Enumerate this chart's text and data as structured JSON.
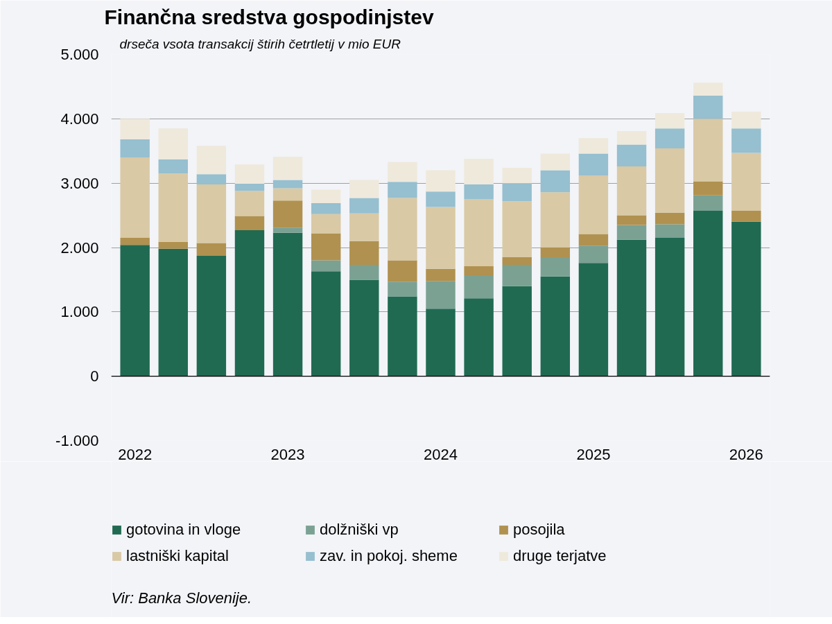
{
  "chart_data": {
    "type": "bar",
    "stacked": true,
    "title": "Finančna sredstva gospodinjstev",
    "subtitle": "drseča vsota transakcij štirih četrtletij v mio EUR",
    "annotations": [
      "Vir: Banka Slovenije."
    ],
    "categories": [
      "2022",
      null,
      null,
      null,
      "2023",
      null,
      null,
      null,
      "2024",
      null,
      null,
      null,
      "2025",
      null,
      null,
      null,
      "2026"
    ],
    "series": [
      {
        "name": "gotovina in vloge",
        "color": "#206a52",
        "values": [
          2040,
          1980,
          1870,
          2270,
          2230,
          1630,
          1500,
          1240,
          1050,
          1210,
          1400,
          1550,
          1760,
          2120,
          2150,
          2570,
          2400
        ]
      },
      {
        "name": "dolžniški vp",
        "color": "#7ba193",
        "values": [
          0,
          0,
          0,
          0,
          80,
          170,
          230,
          230,
          430,
          360,
          330,
          300,
          270,
          230,
          210,
          240,
          0
        ]
      },
      {
        "name": "posojila",
        "color": "#b0914f",
        "values": [
          110,
          110,
          200,
          220,
          420,
          420,
          370,
          330,
          190,
          140,
          120,
          150,
          180,
          150,
          180,
          220,
          170
        ]
      },
      {
        "name": "lastniški kapital",
        "color": "#d9c9a5",
        "values": [
          1250,
          1060,
          910,
          390,
          190,
          300,
          430,
          970,
          960,
          1040,
          870,
          860,
          910,
          760,
          1000,
          970,
          900
        ]
      },
      {
        "name": "zav. in pokoj. sheme",
        "color": "#96bfcf",
        "values": [
          280,
          220,
          160,
          110,
          130,
          170,
          240,
          250,
          240,
          230,
          280,
          340,
          340,
          340,
          310,
          360,
          380
        ]
      },
      {
        "name": "druge terjatve",
        "color": "#efe9dc",
        "values": [
          320,
          480,
          440,
          300,
          360,
          210,
          280,
          310,
          330,
          400,
          240,
          260,
          240,
          210,
          240,
          200,
          260
        ]
      }
    ],
    "ylim": [
      -1000,
      5000
    ],
    "yticks": [
      {
        "value": -1000,
        "label": "-1.000"
      },
      0,
      {
        "value": 1000,
        "label": "1.000"
      },
      {
        "value": 2000,
        "label": "2.000"
      },
      {
        "value": 3000,
        "label": "3.000"
      },
      {
        "value": 4000,
        "label": "4.000"
      },
      {
        "value": 5000,
        "label": "5.000"
      }
    ],
    "ref_lines": [
      {
        "axis": "y",
        "value": 0,
        "label": null,
        "color": "#000000"
      }
    ],
    "grid": "y",
    "legend": "bottom"
  }
}
